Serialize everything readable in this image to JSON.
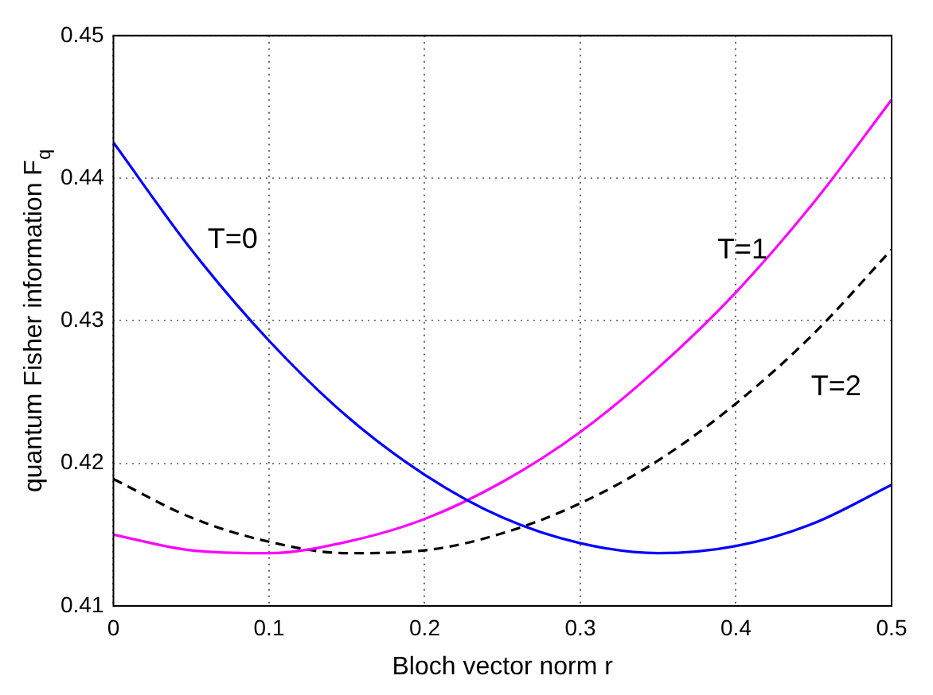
{
  "chart_data": {
    "type": "line",
    "xlabel": "Bloch vector norm r",
    "ylabel": "quantum Fisher information F$_{q}$",
    "x": [
      0,
      0.05,
      0.1,
      0.15,
      0.2,
      0.25,
      0.3,
      0.35,
      0.4,
      0.45,
      0.5
    ],
    "series": [
      {
        "name": "T=0",
        "color": "#0000ff",
        "line_style": "solid",
        "values": [
          0.4425,
          0.435,
          0.4286,
          0.4233,
          0.4192,
          0.4162,
          0.4144,
          0.4137,
          0.4142,
          0.4158,
          0.4185
        ]
      },
      {
        "name": "T=1",
        "color": "#ff00ff",
        "line_style": "solid",
        "values": [
          0.415,
          0.4139,
          0.4137,
          0.4145,
          0.4161,
          0.4187,
          0.4222,
          0.4267,
          0.432,
          0.4383,
          0.4455
        ]
      },
      {
        "name": "T=2",
        "color": "#000000",
        "line_style": "dashed",
        "values": [
          0.4189,
          0.4162,
          0.4145,
          0.4137,
          0.4139,
          0.4151,
          0.4172,
          0.4202,
          0.4242,
          0.4291,
          0.435
        ]
      }
    ],
    "xlim": [
      0,
      0.5
    ],
    "xticks": [
      0,
      0.1,
      0.2,
      0.3,
      0.4,
      0.5
    ],
    "ylim": [
      0.41,
      0.45
    ],
    "yticks": [
      0.41,
      0.42,
      0.43,
      0.44,
      0.45
    ],
    "grid": true,
    "marker": "none",
    "legend": false
  }
}
